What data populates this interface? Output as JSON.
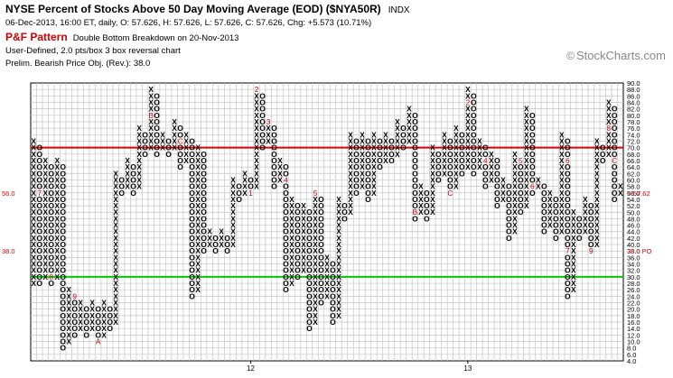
{
  "header": {
    "title": "NYSE Percent of Stocks Above 50 Day Moving Average (EOD) ($NYA50R)",
    "exchange": "INDX",
    "ohlc": "06-Dec-2013, 16:00 ET, daily, O: 57.626, H: 57.626, L: 57.626, C: 57.626, Chg: +5.573 (10.71%)",
    "pattern_label": "P&F Pattern",
    "pattern": "Double Bottom Breakdown on 20-Nov-2013",
    "box_info": "User-Defined, 2.0 pts/box 3 box reversal chart",
    "prelim": "Prelim. Bearish Price Obj. (Rev.): 38.0"
  },
  "watermark": {
    "icon": "copyright-icon",
    "text": "StockCharts.com"
  },
  "chart_data": {
    "type": "point-and-figure",
    "box_size": 2,
    "reversal": 3,
    "ylim": [
      4,
      90
    ],
    "y_ticks": [
      4,
      6,
      8,
      10,
      12,
      14,
      16,
      18,
      20,
      22,
      24,
      26,
      28,
      30,
      32,
      34,
      36,
      38,
      40,
      42,
      44,
      46,
      48,
      50,
      52,
      54,
      56,
      58,
      60,
      62,
      64,
      66,
      68,
      70,
      72,
      74,
      76,
      78,
      80,
      82,
      84,
      86,
      88,
      90
    ],
    "y_tick_labels": [
      "4.0",
      "6.0",
      "8.0",
      "10.0",
      "12.0",
      "14.0",
      "16.0",
      "18.0",
      "20.0",
      "22.0",
      "24.0",
      "26.0",
      "28.0",
      "30.0",
      "32.0",
      "34.0",
      "36.0",
      "38.0",
      "40.0",
      "42.0",
      "44.0",
      "46.0",
      "48.0",
      "50.0",
      "52.0",
      "54.0",
      "56.0",
      "58.0",
      "60.0",
      "62.0",
      "64.0",
      "66.0",
      "68.0",
      "70.0",
      "72.0",
      "74.0",
      "76.0",
      "78.0",
      "80.0",
      "82.0",
      "84.0",
      "86.0",
      "88.0",
      "90.0"
    ],
    "x_labels": [
      {
        "col": 37,
        "text": "12"
      },
      {
        "col": 74,
        "text": "13"
      }
    ],
    "reference_lines": [
      {
        "value": 70,
        "color": "#e00000"
      },
      {
        "value": 30,
        "color": "#00cc00"
      }
    ],
    "price_markers": [
      {
        "value": 56,
        "left": "56.0",
        "right": "<-57.62",
        "color": "#e00000"
      },
      {
        "value": 38,
        "left": "38.0",
        "right": "38.0 PO",
        "color": "#e00000"
      }
    ],
    "columns": [
      {
        "t": "X",
        "lo": 28,
        "hi": 72
      },
      {
        "t": "O",
        "lo": 28,
        "hi": 70,
        "m": [
          {
            "v": 56,
            "c": "7"
          }
        ]
      },
      {
        "t": "X",
        "lo": 30,
        "hi": 66
      },
      {
        "t": "O",
        "lo": 28,
        "hi": 64,
        "m": [
          {
            "v": 30,
            "c": "8"
          }
        ]
      },
      {
        "t": "X",
        "lo": 30,
        "hi": 66
      },
      {
        "t": "O",
        "lo": 8,
        "hi": 64
      },
      {
        "t": "X",
        "lo": 10,
        "hi": 26
      },
      {
        "t": "O",
        "lo": 12,
        "hi": 24,
        "m": [
          {
            "v": 24,
            "c": "9"
          }
        ]
      },
      {
        "t": "X",
        "lo": 14,
        "hi": 22
      },
      {
        "t": "O",
        "lo": 12,
        "hi": 20
      },
      {
        "t": "X",
        "lo": 14,
        "hi": 22
      },
      {
        "t": "O",
        "lo": 10,
        "hi": 20,
        "m": [
          {
            "v": 10,
            "c": "A"
          }
        ]
      },
      {
        "t": "X",
        "lo": 12,
        "hi": 22
      },
      {
        "t": "O",
        "lo": 14,
        "hi": 20
      },
      {
        "t": "X",
        "lo": 16,
        "hi": 62
      },
      {
        "t": "O",
        "lo": 56,
        "hi": 60
      },
      {
        "t": "X",
        "lo": 58,
        "hi": 66
      },
      {
        "t": "O",
        "lo": 56,
        "hi": 64
      },
      {
        "t": "X",
        "lo": 58,
        "hi": 76
      },
      {
        "t": "O",
        "lo": 68,
        "hi": 74
      },
      {
        "t": "X",
        "lo": 70,
        "hi": 88,
        "m": [
          {
            "v": 80,
            "c": "B"
          }
        ]
      },
      {
        "t": "O",
        "lo": 68,
        "hi": 86
      },
      {
        "t": "X",
        "lo": 70,
        "hi": 74
      },
      {
        "t": "O",
        "lo": 68,
        "hi": 72
      },
      {
        "t": "X",
        "lo": 70,
        "hi": 78
      },
      {
        "t": "O",
        "lo": 64,
        "hi": 76,
        "m": [
          {
            "v": 72,
            "c": "C"
          }
        ]
      },
      {
        "t": "X",
        "lo": 66,
        "hi": 74
      },
      {
        "t": "O",
        "lo": 24,
        "hi": 72
      },
      {
        "t": "X",
        "lo": 26,
        "hi": 70
      },
      {
        "t": "O",
        "lo": 38,
        "hi": 68
      },
      {
        "t": "X",
        "lo": 40,
        "hi": 44
      },
      {
        "t": "O",
        "lo": 38,
        "hi": 42
      },
      {
        "t": "X",
        "lo": 40,
        "hi": 44
      },
      {
        "t": "O",
        "lo": 38,
        "hi": 42
      },
      {
        "t": "X",
        "lo": 40,
        "hi": 60
      },
      {
        "t": "O",
        "lo": 54,
        "hi": 58
      },
      {
        "t": "X",
        "lo": 56,
        "hi": 62
      },
      {
        "t": "O",
        "lo": 56,
        "hi": 60,
        "m": [
          {
            "v": 56,
            "c": "1"
          }
        ]
      },
      {
        "t": "X",
        "lo": 58,
        "hi": 88,
        "m": [
          {
            "v": 88,
            "c": "2"
          }
        ]
      },
      {
        "t": "O",
        "lo": 70,
        "hi": 86
      },
      {
        "t": "X",
        "lo": 72,
        "hi": 78,
        "m": [
          {
            "v": 78,
            "c": "3"
          }
        ]
      },
      {
        "t": "O",
        "lo": 58,
        "hi": 76
      },
      {
        "t": "X",
        "lo": 60,
        "hi": 66
      },
      {
        "t": "O",
        "lo": 26,
        "hi": 64,
        "m": [
          {
            "v": 60,
            "c": "4"
          }
        ]
      },
      {
        "t": "X",
        "lo": 28,
        "hi": 54
      },
      {
        "t": "O",
        "lo": 30,
        "hi": 52
      },
      {
        "t": "X",
        "lo": 32,
        "hi": 52
      },
      {
        "t": "O",
        "lo": 14,
        "hi": 50
      },
      {
        "t": "X",
        "lo": 16,
        "hi": 56,
        "m": [
          {
            "v": 56,
            "c": "5"
          }
        ]
      },
      {
        "t": "O",
        "lo": 22,
        "hi": 54
      },
      {
        "t": "X",
        "lo": 24,
        "hi": 36
      },
      {
        "t": "O",
        "lo": 16,
        "hi": 34
      },
      {
        "t": "X",
        "lo": 18,
        "hi": 54
      },
      {
        "t": "O",
        "lo": 48,
        "hi": 52
      },
      {
        "t": "X",
        "lo": 50,
        "hi": 74
      },
      {
        "t": "O",
        "lo": 56,
        "hi": 72
      },
      {
        "t": "X",
        "lo": 58,
        "hi": 74
      },
      {
        "t": "O",
        "lo": 54,
        "hi": 72
      },
      {
        "t": "X",
        "lo": 56,
        "hi": 74
      },
      {
        "t": "O",
        "lo": 64,
        "hi": 72
      },
      {
        "t": "X",
        "lo": 66,
        "hi": 74
      },
      {
        "t": "O",
        "lo": 66,
        "hi": 72
      },
      {
        "t": "X",
        "lo": 68,
        "hi": 78
      },
      {
        "t": "O",
        "lo": 70,
        "hi": 76
      },
      {
        "t": "X",
        "lo": 72,
        "hi": 82
      },
      {
        "t": "O",
        "lo": 48,
        "hi": 80,
        "m": [
          {
            "v": 50,
            "c": "B"
          }
        ]
      },
      {
        "t": "X",
        "lo": 50,
        "hi": 58
      },
      {
        "t": "O",
        "lo": 48,
        "hi": 56
      },
      {
        "t": "X",
        "lo": 50,
        "hi": 70
      },
      {
        "t": "O",
        "lo": 60,
        "hi": 68
      },
      {
        "t": "X",
        "lo": 62,
        "hi": 74
      },
      {
        "t": "O",
        "lo": 56,
        "hi": 72,
        "m": [
          {
            "v": 56,
            "c": "C"
          }
        ]
      },
      {
        "t": "X",
        "lo": 58,
        "hi": 76
      },
      {
        "t": "O",
        "lo": 62,
        "hi": 74
      },
      {
        "t": "X",
        "lo": 64,
        "hi": 88,
        "m": [
          {
            "v": 84,
            "c": "2"
          }
        ]
      },
      {
        "t": "O",
        "lo": 62,
        "hi": 86
      },
      {
        "t": "X",
        "lo": 64,
        "hi": 72
      },
      {
        "t": "O",
        "lo": 58,
        "hi": 70,
        "m": [
          {
            "v": 66,
            "c": "4"
          }
        ]
      },
      {
        "t": "X",
        "lo": 60,
        "hi": 68
      },
      {
        "t": "O",
        "lo": 52,
        "hi": 66
      },
      {
        "t": "X",
        "lo": 54,
        "hi": 60
      },
      {
        "t": "O",
        "lo": 42,
        "hi": 58
      },
      {
        "t": "X",
        "lo": 44,
        "hi": 68
      },
      {
        "t": "O",
        "lo": 50,
        "hi": 66,
        "m": [
          {
            "v": 66,
            "c": "5"
          }
        ]
      },
      {
        "t": "X",
        "lo": 52,
        "hi": 82
      },
      {
        "t": "O",
        "lo": 56,
        "hi": 80,
        "m": [
          {
            "v": 58,
            "c": "6"
          }
        ]
      },
      {
        "t": "X",
        "lo": 58,
        "hi": 60
      },
      {
        "t": "O",
        "lo": 44,
        "hi": 58
      },
      {
        "t": "X",
        "lo": 46,
        "hi": 56
      },
      {
        "t": "O",
        "lo": 42,
        "hi": 54
      },
      {
        "t": "X",
        "lo": 44,
        "hi": 74
      },
      {
        "t": "O",
        "lo": 24,
        "hi": 72,
        "m": [
          {
            "v": 38,
            "c": "7"
          },
          {
            "v": 66,
            "c": "6"
          }
        ]
      },
      {
        "t": "X",
        "lo": 26,
        "hi": 50
      },
      {
        "t": "O",
        "lo": 42,
        "hi": 48
      },
      {
        "t": "X",
        "lo": 44,
        "hi": 54
      },
      {
        "t": "O",
        "lo": 38,
        "hi": 52,
        "m": [
          {
            "v": 38,
            "c": "9"
          }
        ]
      },
      {
        "t": "X",
        "lo": 40,
        "hi": 72
      },
      {
        "t": "O",
        "lo": 66,
        "hi": 70
      },
      {
        "t": "X",
        "lo": 68,
        "hi": 84,
        "m": [
          {
            "v": 76,
            "c": "8"
          }
        ]
      },
      {
        "t": "O",
        "lo": 54,
        "hi": 82,
        "m": [
          {
            "v": 66,
            "c": "C"
          }
        ]
      },
      {
        "t": "X",
        "lo": 56,
        "hi": 58
      }
    ]
  }
}
